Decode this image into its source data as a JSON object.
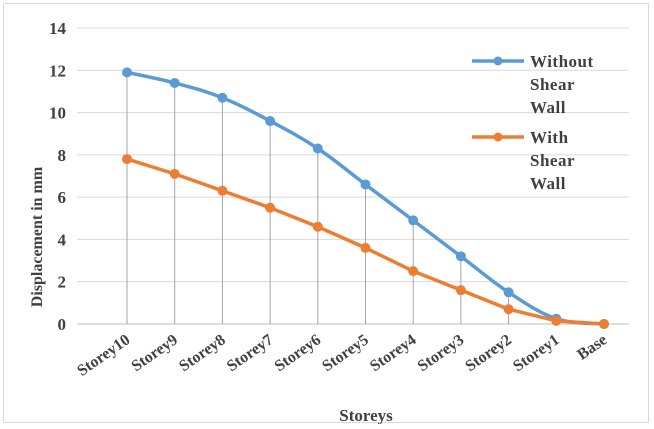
{
  "chart_data": {
    "type": "line",
    "title": "",
    "xlabel": "Storeys",
    "ylabel": "Displacement in mm",
    "categories": [
      "Storey10",
      "Storey9",
      "Storey8",
      "Storey7",
      "Storey6",
      "Storey5",
      "Storey4",
      "Storey3",
      "Storey2",
      "Storey1",
      "Base"
    ],
    "ylim": [
      0,
      14
    ],
    "yticks": [
      0,
      2,
      4,
      6,
      8,
      10,
      12,
      14
    ],
    "grid": "horizontal",
    "drop_lines": true,
    "legend_position": "right",
    "series": [
      {
        "name": "Without Shear Wall",
        "legend_lines": [
          "Without",
          "Shear",
          "Wall"
        ],
        "color": "#5b9bd5",
        "smooth": true,
        "values": [
          11.9,
          11.4,
          10.7,
          9.6,
          8.3,
          6.6,
          4.9,
          3.2,
          1.5,
          0.25,
          0
        ]
      },
      {
        "name": "With Shear Wall",
        "legend_lines": [
          "With",
          "Shear",
          "Wall"
        ],
        "color": "#ed7d31",
        "smooth": false,
        "values": [
          7.8,
          7.1,
          6.3,
          5.5,
          4.6,
          3.6,
          2.5,
          1.6,
          0.7,
          0.15,
          0
        ]
      }
    ]
  }
}
